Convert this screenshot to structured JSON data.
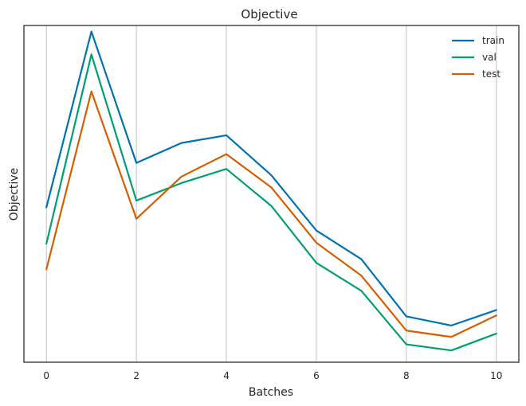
{
  "chart_data": {
    "type": "line",
    "title": "Objective",
    "xlabel": "Batches",
    "ylabel": "Objective",
    "x": [
      0,
      1,
      2,
      3,
      4,
      5,
      6,
      7,
      8,
      9,
      10
    ],
    "xlim": [
      -0.5,
      10.5
    ],
    "ylim": [
      0,
      1
    ],
    "xticks": [
      0,
      2,
      4,
      6,
      8,
      10
    ],
    "xtick_labels": [
      "0",
      "2",
      "4",
      "6",
      "8",
      "10"
    ],
    "show_yticks": false,
    "grid": "vertical",
    "legend_position": "top-right",
    "series": [
      {
        "name": "train",
        "color": "#0072b2",
        "values": [
          0.46,
          0.982,
          0.592,
          0.651,
          0.674,
          0.555,
          0.391,
          0.306,
          0.136,
          0.109,
          0.155
        ]
      },
      {
        "name": "val",
        "color": "#009e73",
        "values": [
          0.352,
          0.914,
          0.48,
          0.532,
          0.574,
          0.464,
          0.295,
          0.212,
          0.053,
          0.035,
          0.085
        ]
      },
      {
        "name": "test",
        "color": "#d55e00",
        "values": [
          0.276,
          0.804,
          0.426,
          0.551,
          0.618,
          0.519,
          0.355,
          0.257,
          0.094,
          0.075,
          0.139
        ]
      }
    ]
  }
}
